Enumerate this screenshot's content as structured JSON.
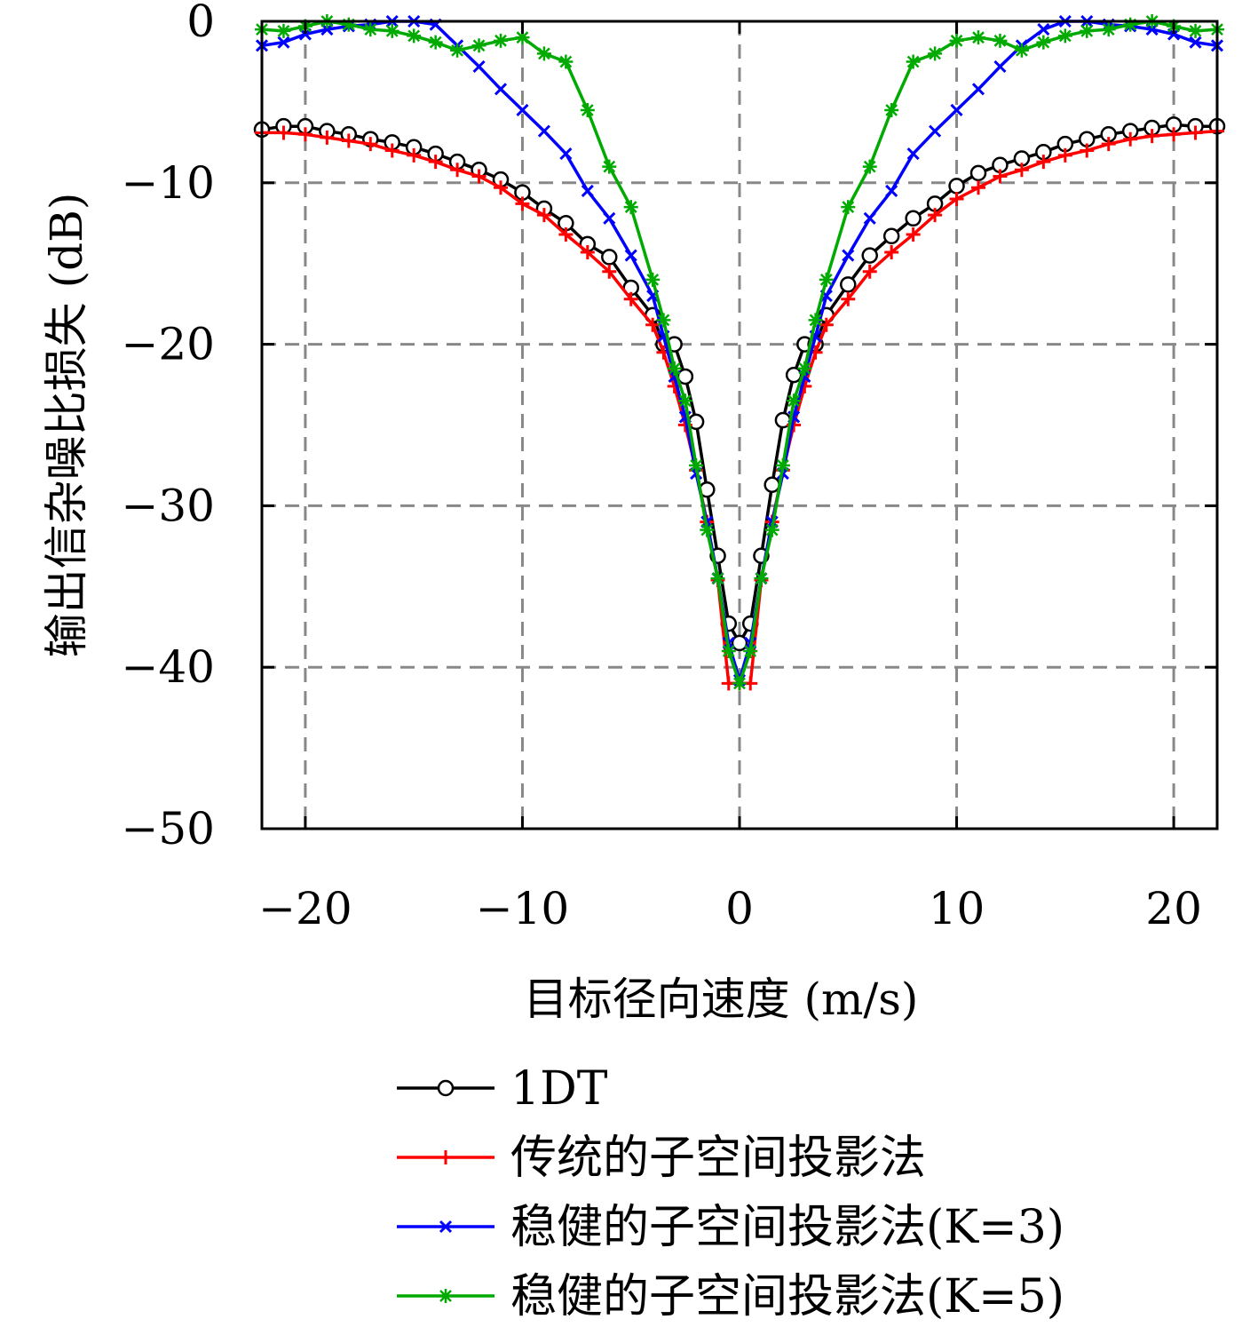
{
  "chart_data": {
    "type": "line",
    "xlabel": "目标径向速度 (m/s)",
    "ylabel": "输出信杂噪比损失 (dB)",
    "xlim": [
      -22,
      22
    ],
    "ylim": [
      -50,
      0
    ],
    "xticks": [
      -20,
      -10,
      0,
      10,
      20
    ],
    "yticks": [
      0,
      -10,
      -20,
      -30,
      -40,
      -50
    ],
    "xtick_labels": [
      "−20",
      "−10",
      "0",
      "10",
      "20"
    ],
    "ytick_labels": [
      "0",
      "−10",
      "−20",
      "−30",
      "−40",
      "−50"
    ],
    "grid": true,
    "legend_position": "bottom, below the plot",
    "series": [
      {
        "name": "1DT",
        "color": "#000000",
        "marker": "circle",
        "x": [
          -22,
          -21,
          -20,
          -19,
          -18,
          -17,
          -16,
          -15,
          -14,
          -13,
          -12,
          -11,
          -10,
          -9,
          -8,
          -7,
          -6,
          -5,
          -4,
          -3.5,
          -3,
          -2.5,
          -2,
          -1.5,
          -1,
          -0.5,
          0,
          0.5,
          1,
          1.5,
          2,
          2.5,
          3,
          3.5,
          4,
          5,
          6,
          7,
          8,
          9,
          10,
          11,
          12,
          13,
          14,
          15,
          16,
          17,
          18,
          19,
          20,
          21,
          22
        ],
        "y": [
          -6.7,
          -6.5,
          -6.5,
          -6.8,
          -7.0,
          -7.3,
          -7.5,
          -7.8,
          -8.2,
          -8.7,
          -9.2,
          -9.8,
          -10.6,
          -11.6,
          -12.5,
          -13.8,
          -14.6,
          -16.5,
          -18.2,
          -20.0,
          -20.0,
          -22.0,
          -24.8,
          -29.0,
          -33.1,
          -37.3,
          -38.5,
          -37.3,
          -33.1,
          -28.7,
          -24.7,
          -21.9,
          -20.0,
          -20.0,
          -18.2,
          -16.3,
          -14.5,
          -13.3,
          -12.2,
          -11.3,
          -10.2,
          -9.4,
          -8.9,
          -8.5,
          -8.1,
          -7.6,
          -7.3,
          -7.0,
          -6.8,
          -6.6,
          -6.4,
          -6.5,
          -6.5
        ]
      },
      {
        "name": "传统的子空间投影法",
        "color": "#ff0000",
        "marker": "plus",
        "x": [
          -22,
          -21,
          -20,
          -19,
          -18,
          -17,
          -16,
          -15,
          -14,
          -13,
          -12,
          -11,
          -10,
          -9,
          -8,
          -7,
          -6,
          -5,
          -4,
          -3.5,
          -3,
          -2.5,
          -2,
          -1.5,
          -1,
          -0.5,
          0,
          0.5,
          1,
          1.5,
          2,
          2.5,
          3,
          3.5,
          4,
          5,
          6,
          7,
          8,
          9,
          10,
          11,
          12,
          13,
          14,
          15,
          16,
          17,
          18,
          19,
          20,
          21,
          22
        ],
        "y": [
          -6.9,
          -6.9,
          -7.0,
          -7.2,
          -7.4,
          -7.6,
          -8.0,
          -8.3,
          -8.7,
          -9.2,
          -9.6,
          -10.3,
          -11.3,
          -12.0,
          -13.2,
          -14.3,
          -15.5,
          -17.2,
          -18.8,
          -20.5,
          -22.6,
          -25.0,
          -27.8,
          -31.0,
          -34.6,
          -41.0,
          -41.0,
          -41.0,
          -34.6,
          -31.0,
          -27.8,
          -25.0,
          -22.6,
          -20.5,
          -18.8,
          -17.2,
          -15.5,
          -14.3,
          -13.2,
          -12.0,
          -11.0,
          -10.3,
          -9.6,
          -9.2,
          -8.7,
          -8.3,
          -8.0,
          -7.6,
          -7.3,
          -7.1,
          -7.0,
          -6.9,
          -6.8
        ]
      },
      {
        "name": "稳健的子空间投影法(K=3)",
        "color": "#0000ff",
        "marker": "x",
        "x": [
          -22,
          -21,
          -20,
          -19,
          -18,
          -17,
          -16,
          -15,
          -14,
          -13,
          -12,
          -11,
          -10,
          -9,
          -8,
          -7,
          -6,
          -5,
          -4,
          -3.5,
          -3,
          -2.5,
          -2,
          -1.5,
          -1,
          -0.5,
          0,
          0.5,
          1,
          1.5,
          2,
          2.5,
          3,
          3.5,
          4,
          5,
          6,
          7,
          8,
          9,
          10,
          11,
          12,
          13,
          14,
          15,
          16,
          17,
          18,
          19,
          20,
          21,
          22
        ],
        "y": [
          -1.5,
          -1.3,
          -0.8,
          -0.5,
          -0.3,
          -0.2,
          0.0,
          0.0,
          -0.2,
          -1.5,
          -2.8,
          -4.2,
          -5.5,
          -6.8,
          -8.2,
          -10.5,
          -12.2,
          -14.5,
          -17.0,
          -19.5,
          -22.0,
          -24.5,
          -28.0,
          -31.0,
          -34.5,
          -38.5,
          -40.8,
          -38.5,
          -34.5,
          -31.0,
          -28.0,
          -24.5,
          -22.0,
          -19.5,
          -17.0,
          -14.5,
          -12.2,
          -10.5,
          -8.2,
          -6.8,
          -5.5,
          -4.2,
          -2.8,
          -1.5,
          -0.5,
          0.0,
          0.0,
          -0.2,
          -0.3,
          -0.5,
          -0.8,
          -1.3,
          -1.5
        ]
      },
      {
        "name": "稳健的子空间投影法(K=5)",
        "color": "#00aa00",
        "marker": "asterisk",
        "x": [
          -22,
          -21,
          -20,
          -19,
          -18,
          -17,
          -16,
          -15,
          -14,
          -13,
          -12,
          -11,
          -10,
          -9,
          -8,
          -7,
          -6,
          -5,
          -4,
          -3.5,
          -3,
          -2.5,
          -2,
          -1.5,
          -1,
          -0.5,
          0,
          0.5,
          1,
          1.5,
          2,
          2.5,
          3,
          3.5,
          4,
          5,
          6,
          7,
          8,
          9,
          10,
          11,
          12,
          13,
          14,
          15,
          16,
          17,
          18,
          19,
          20,
          21,
          22
        ],
        "y": [
          -0.5,
          -0.6,
          -0.3,
          0.0,
          -0.2,
          -0.5,
          -0.6,
          -0.9,
          -1.3,
          -1.8,
          -1.5,
          -1.2,
          -1.0,
          -2.0,
          -2.5,
          -5.5,
          -9.0,
          -11.5,
          -16.0,
          -18.5,
          -21.5,
          -23.5,
          -27.5,
          -31.5,
          -34.5,
          -39.0,
          -41.0,
          -39.0,
          -34.5,
          -31.5,
          -27.5,
          -23.5,
          -21.5,
          -18.5,
          -16.0,
          -11.5,
          -9.0,
          -5.5,
          -2.5,
          -2.0,
          -1.2,
          -1.0,
          -1.2,
          -1.8,
          -1.3,
          -0.9,
          -0.6,
          -0.5,
          -0.2,
          0.0,
          -0.3,
          -0.6,
          -0.5
        ]
      }
    ]
  }
}
